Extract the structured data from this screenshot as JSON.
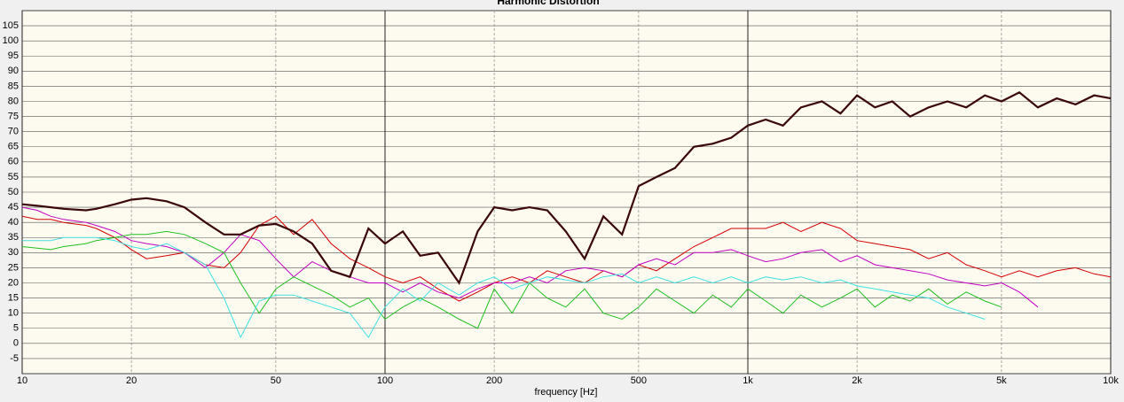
{
  "chart_data": {
    "type": "line",
    "title": "Harmonic Distortion",
    "x_label": "frequency [Hz]",
    "log_x": true,
    "grid": true,
    "xlim": [
      10,
      10000
    ],
    "ylim": [
      -10,
      110
    ],
    "xticks": [
      10,
      20,
      50,
      100,
      200,
      500,
      {
        "value": 1000,
        "label": "1k"
      },
      {
        "value": 2000,
        "label": "2k"
      },
      {
        "value": 5000,
        "label": "5k"
      },
      {
        "value": 10000,
        "label": "10k"
      }
    ],
    "yticks": [
      -5,
      0,
      5,
      10,
      15,
      20,
      25,
      30,
      35,
      40,
      45,
      50,
      55,
      60,
      65,
      70,
      75,
      80,
      85,
      90,
      95,
      100,
      105
    ],
    "x": [
      10,
      11,
      12,
      13,
      15,
      16,
      18,
      20,
      22,
      25,
      28,
      32,
      36,
      40,
      45,
      50,
      56,
      63,
      71,
      80,
      90,
      100,
      112,
      125,
      140,
      160,
      180,
      200,
      224,
      250,
      280,
      315,
      355,
      400,
      450,
      500,
      560,
      630,
      710,
      800,
      900,
      1000,
      1120,
      1250,
      1400,
      1600,
      1800,
      2000,
      2240,
      2500,
      2800,
      3150,
      3550,
      4000,
      4500,
      5000,
      5600,
      6300,
      7100,
      8000,
      9000,
      10000
    ],
    "series": [
      {
        "color": "#d40000",
        "values": [
          42,
          41,
          41,
          40,
          39,
          38,
          35,
          31,
          28,
          29,
          30,
          26,
          25,
          30,
          39,
          42,
          36,
          41,
          33,
          28,
          25,
          22,
          20,
          22,
          18,
          14,
          17,
          20,
          22,
          20,
          24,
          22,
          20,
          24,
          22,
          26,
          24,
          28,
          32,
          35,
          38,
          38,
          38,
          40,
          37,
          40,
          38,
          34,
          33,
          32,
          31,
          28,
          30,
          26,
          24,
          22,
          24,
          22,
          24,
          25,
          23,
          22
        ]
      },
      {
        "color": "#c000c0",
        "values": [
          45,
          44,
          42,
          41,
          40,
          39,
          37,
          34,
          33,
          32,
          30,
          25,
          30,
          36,
          34,
          28,
          22,
          27,
          24,
          22,
          20,
          20,
          17,
          20,
          17,
          15,
          18,
          20,
          20,
          22,
          20,
          24,
          25,
          24,
          22,
          26,
          28,
          26,
          30,
          30,
          31,
          29,
          27,
          28,
          30,
          31,
          27,
          29,
          26,
          25,
          24,
          23,
          21,
          20,
          19,
          20,
          17,
          12,
          null,
          null,
          null,
          null
        ]
      },
      {
        "color": "#20c020",
        "values": [
          32,
          31.5,
          31,
          32,
          33,
          34,
          35,
          36,
          36,
          37,
          36,
          33,
          30,
          20,
          10,
          18,
          22,
          19,
          16,
          12,
          15,
          8,
          12,
          15,
          12,
          8,
          5,
          18,
          10,
          20,
          15,
          12,
          18,
          10,
          8,
          12,
          18,
          14,
          10,
          16,
          12,
          18,
          14,
          10,
          16,
          12,
          15,
          18,
          12,
          16,
          14,
          18,
          13,
          17,
          14,
          12,
          null,
          null,
          null,
          null,
          null,
          null
        ]
      },
      {
        "color": "#40e0e0",
        "values": [
          34,
          34,
          34,
          35,
          35,
          35,
          34,
          32,
          31,
          33,
          30,
          26,
          15,
          2,
          14,
          16,
          16,
          14,
          12,
          10,
          2,
          12,
          18,
          14,
          20,
          16,
          20,
          22,
          18,
          20,
          22,
          21,
          20,
          22,
          23,
          20,
          22,
          20,
          22,
          20,
          22,
          20,
          22,
          21,
          22,
          20,
          21,
          19,
          18,
          17,
          16,
          15,
          12,
          10,
          8,
          null,
          null,
          null,
          null,
          null,
          null,
          null
        ]
      },
      {
        "color": "#3a0808",
        "values": [
          46,
          45.5,
          45,
          44.5,
          44,
          44.5,
          46,
          47.5,
          48,
          47,
          45,
          40,
          36,
          36,
          39,
          39.5,
          37,
          33,
          24,
          22,
          38,
          33,
          37,
          29,
          30,
          20,
          37,
          45,
          44,
          45,
          44,
          37,
          28,
          42,
          36,
          52,
          55,
          58,
          65,
          66,
          68,
          72,
          74,
          72,
          78,
          80,
          76,
          82,
          78,
          80,
          75,
          78,
          80,
          78,
          82,
          80,
          83,
          78,
          81,
          79,
          82,
          81
        ]
      }
    ]
  }
}
